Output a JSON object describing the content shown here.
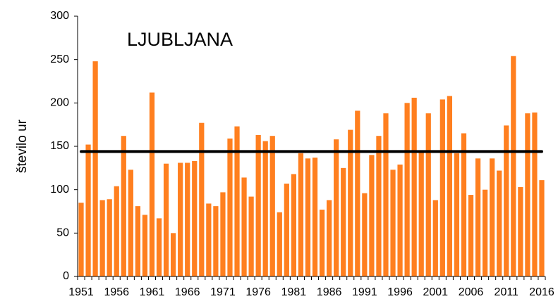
{
  "chart_data": {
    "type": "bar",
    "title": "LJUBLJANA",
    "y_label": "število ur",
    "categories": [
      1951,
      null,
      null,
      null,
      null,
      1956,
      null,
      null,
      null,
      null,
      1961,
      null,
      null,
      null,
      null,
      1966,
      null,
      null,
      null,
      null,
      1971,
      null,
      null,
      null,
      null,
      1976,
      null,
      null,
      null,
      null,
      1981,
      null,
      null,
      null,
      null,
      1986,
      null,
      null,
      null,
      null,
      1991,
      null,
      null,
      null,
      null,
      1996,
      null,
      null,
      null,
      null,
      2001,
      null,
      null,
      null,
      null,
      2006,
      null,
      null,
      null,
      null,
      2011,
      null,
      null,
      null,
      null,
      2016
    ],
    "values": [
      85,
      152,
      248,
      88,
      89,
      104,
      162,
      123,
      81,
      71,
      212,
      67,
      130,
      50,
      131,
      131,
      133,
      177,
      84,
      81,
      97,
      159,
      173,
      114,
      92,
      163,
      156,
      162,
      74,
      107,
      118,
      142,
      136,
      137,
      77,
      88,
      158,
      125,
      169,
      191,
      96,
      140,
      162,
      188,
      123,
      129,
      200,
      206,
      143,
      188,
      88,
      204,
      208,
      142,
      165,
      94,
      136,
      100,
      136,
      122,
      174,
      254,
      103,
      188,
      189,
      111
    ],
    "color": "#ff7f1f",
    "reference_line": 144,
    "reference_color": "#000000",
    "ylim": [
      0,
      300
    ],
    "yticks": [
      0,
      50,
      100,
      150,
      200,
      250,
      300
    ],
    "grid": false
  }
}
